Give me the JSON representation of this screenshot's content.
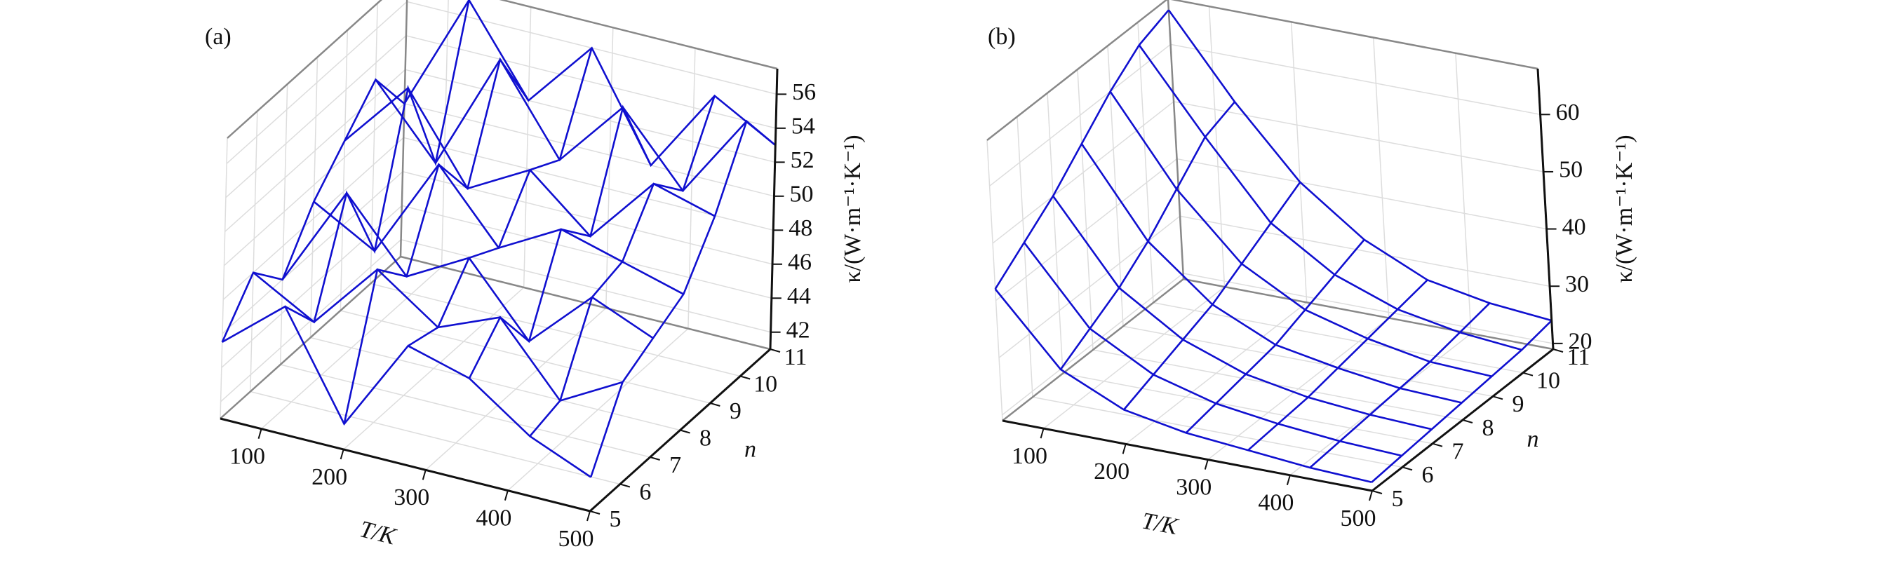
{
  "chart_data": [
    {
      "type": "wireframe",
      "label": "(a)",
      "xlabel": "T/K",
      "ylabel": "n",
      "zlabel": "κ/(W·m⁻¹·K⁻¹)",
      "color": "#1010d0",
      "grid": true,
      "x": [
        50,
        125,
        200,
        275,
        350,
        425,
        500
      ],
      "y": [
        5,
        6,
        7,
        8,
        9,
        10,
        11
      ],
      "z": [
        [
          45.5,
          48.5,
          42.5,
          48,
          47,
          44.5,
          43
        ],
        [
          48,
          46,
          50,
          47.5,
          49,
          45,
          47
        ],
        [
          46,
          52,
          48,
          50,
          46,
          49.5,
          48
        ],
        [
          49,
          47,
          53,
          49,
          51,
          50,
          49
        ],
        [
          51,
          55,
          50,
          52,
          49,
          53,
          52
        ],
        [
          53,
          49,
          56,
          51,
          55,
          51,
          56
        ],
        [
          50,
          57,
          52,
          56,
          50,
          55,
          53
        ]
      ],
      "xlim": [
        50,
        500
      ],
      "xticks": [
        100,
        200,
        300,
        400,
        500
      ],
      "ylim": [
        5,
        11
      ],
      "yticks": [
        5,
        6,
        7,
        8,
        9,
        10,
        11
      ],
      "zlim": [
        41,
        57.5
      ],
      "zticks": [
        42,
        44,
        46,
        48,
        50,
        52,
        54,
        56
      ]
    },
    {
      "type": "wireframe",
      "label": "(b)",
      "xlabel": "T/K",
      "ylabel": "n",
      "zlabel": "κ/(W·m⁻¹·K⁻¹)",
      "color": "#1010d0",
      "grid": true,
      "x": [
        50,
        125,
        200,
        275,
        350,
        425,
        500
      ],
      "y": [
        5,
        6,
        7,
        8,
        9,
        10,
        11
      ],
      "z": [
        [
          42,
          30,
          25,
          23,
          22,
          21,
          20.5
        ],
        [
          46,
          33,
          27,
          24,
          22.5,
          21.5,
          21
        ],
        [
          50,
          36,
          29,
          25,
          23,
          22,
          21.5
        ],
        [
          55,
          40,
          31,
          26,
          24,
          22.5,
          22
        ],
        [
          60,
          45,
          34,
          28,
          25,
          23,
          22.5
        ],
        [
          64,
          50,
          37,
          30,
          26,
          24,
          23
        ],
        [
          66,
          52,
          40,
          32,
          27,
          25,
          24
        ]
      ],
      "xlim": [
        50,
        500
      ],
      "xticks": [
        100,
        200,
        300,
        400,
        500
      ],
      "ylim": [
        5,
        11
      ],
      "yticks": [
        5,
        6,
        7,
        8,
        9,
        10,
        11
      ],
      "zlim": [
        19,
        68
      ],
      "zticks": [
        20,
        30,
        40,
        50,
        60
      ]
    }
  ]
}
